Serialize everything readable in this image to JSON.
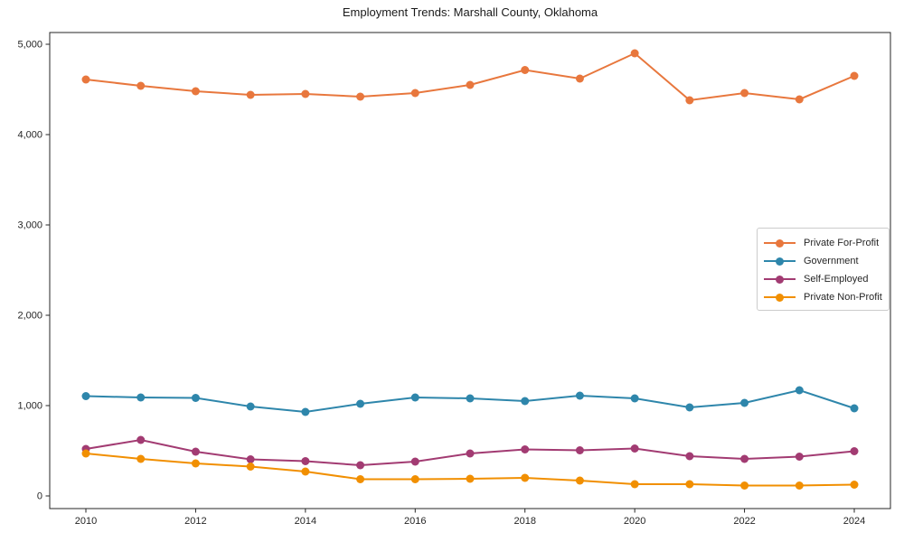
{
  "chart_data": {
    "type": "line",
    "title": "Employment Trends: Marshall County, Oklahoma",
    "xlabel": "",
    "ylabel": "",
    "x": [
      2010,
      2011,
      2012,
      2013,
      2014,
      2015,
      2016,
      2017,
      2018,
      2019,
      2020,
      2021,
      2022,
      2023,
      2024
    ],
    "series": [
      {
        "name": "Private For-Profit",
        "color": "#E8773D",
        "values": [
          4610,
          4540,
          4480,
          4440,
          4450,
          4420,
          4460,
          4550,
          4715,
          4620,
          4900,
          4380,
          4460,
          4390,
          4650
        ]
      },
      {
        "name": "Government",
        "color": "#2E86AB",
        "values": [
          1105,
          1090,
          1085,
          990,
          930,
          1020,
          1090,
          1080,
          1050,
          1110,
          1080,
          980,
          1030,
          1170,
          970
        ]
      },
      {
        "name": "Self-Employed",
        "color": "#A23B72",
        "values": [
          520,
          620,
          490,
          405,
          385,
          340,
          380,
          470,
          515,
          505,
          525,
          440,
          410,
          435,
          495
        ]
      },
      {
        "name": "Private Non-Profit",
        "color": "#F18F01",
        "values": [
          470,
          410,
          360,
          325,
          270,
          185,
          185,
          190,
          200,
          170,
          130,
          130,
          115,
          115,
          125
        ]
      }
    ],
    "ylim": [
      0,
      5000
    ],
    "yticks": [
      0,
      1000,
      2000,
      3000,
      4000,
      5000
    ],
    "ytick_labels": [
      "0",
      "1,000",
      "2,000",
      "3,000",
      "4,000",
      "5,000"
    ],
    "xticks": [
      2010,
      2012,
      2014,
      2016,
      2018,
      2020,
      2022,
      2024
    ],
    "xtick_labels": [
      "2010",
      "2012",
      "2014",
      "2016",
      "2018",
      "2020",
      "2022",
      "2024"
    ],
    "grid": false,
    "legend_position": "center-right",
    "marker": "circle",
    "axis_color": "#262626"
  }
}
